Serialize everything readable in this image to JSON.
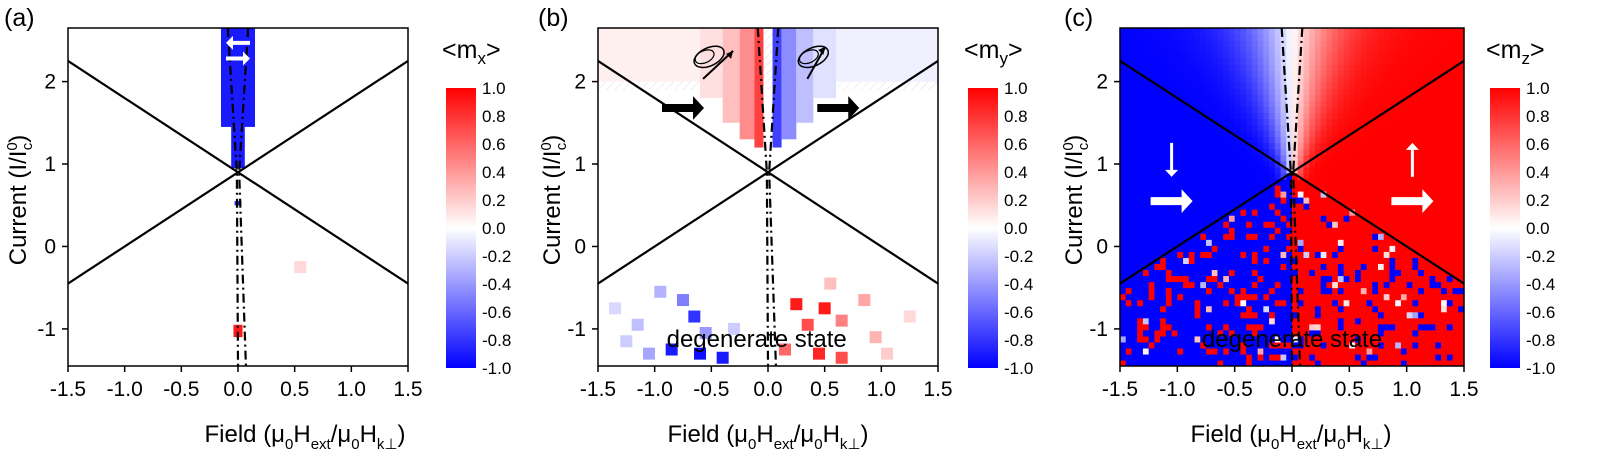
{
  "figure": {
    "description_visible": false
  },
  "colors": {
    "negative": "#0000ff",
    "zero": "#ffffff",
    "positive": "#ff0000"
  },
  "chart_data": [
    {
      "type": "heatmap",
      "panel_label": "(a)",
      "title": "",
      "xlabel": "Field (μ0Hext/μ0Hk⊥)",
      "xlabel_parts": {
        "main": "Field (μ",
        "s1": "0",
        "m2": "H",
        "s2": "ext",
        "m3": "/μ",
        "s3": "0",
        "m4": "H",
        "s4": "k⊥",
        "end": ")"
      },
      "ylabel": "Current (I/I0c)",
      "ylabel_parts": {
        "main": "Current (I/I",
        "sup": "0",
        "sub": "c",
        "end": ")"
      },
      "xlim": [
        -1.5,
        1.5
      ],
      "ylim": [
        -1.45,
        2.65
      ],
      "xticks": [
        "-1.5",
        "-1.0",
        "-0.5",
        "0.0",
        "0.5",
        "1.0",
        "1.5"
      ],
      "yticks": [
        "-1",
        "0",
        "1",
        "2"
      ],
      "colorbar": {
        "title_main": "<m",
        "title_sub": "x",
        "title_end": ">",
        "range": [
          -1.0,
          1.0
        ],
        "ticks": [
          "1.0",
          "0.8",
          "0.6",
          "0.4",
          "0.2",
          "0.0",
          "-0.2",
          "-0.4",
          "-0.6",
          "-0.8",
          "-1.0"
        ]
      },
      "lines_solid": [
        {
          "x": [
            -1.5,
            1.5
          ],
          "y": [
            -0.45,
            2.25
          ]
        },
        {
          "x": [
            -1.5,
            1.5
          ],
          "y": [
            2.25,
            -0.45
          ]
        }
      ],
      "lines_dashdot": [
        {
          "x": [
            -0.09,
            -0.01,
            0.0
          ],
          "y": [
            2.65,
            0.9,
            -1.45
          ]
        },
        {
          "x": [
            0.09,
            0.01,
            0.07
          ],
          "y": [
            2.65,
            0.9,
            -1.45
          ]
        }
      ],
      "regions": [
        {
          "x": [
            -0.15,
            0.15
          ],
          "y": [
            1.45,
            2.65
          ],
          "value": -0.9
        },
        {
          "x": [
            -0.06,
            0.06
          ],
          "y": [
            0.95,
            1.45
          ],
          "value": -0.9
        },
        {
          "x": [
            -0.03,
            0.03
          ],
          "y": [
            0.5,
            0.55
          ],
          "value": -0.9
        },
        {
          "x": [
            -0.04,
            0.04
          ],
          "y": [
            -1.1,
            -0.95
          ],
          "value": 0.9
        }
      ],
      "scatter_cells": [
        {
          "x": 0.55,
          "y": -0.25,
          "value": 0.15
        }
      ],
      "annotations": [
        {
          "kind": "arrow",
          "dir": "left",
          "x": 0.0,
          "y": 2.47,
          "style": "small"
        },
        {
          "kind": "arrow",
          "dir": "right",
          "x": 0.0,
          "y": 2.28,
          "style": "small"
        }
      ],
      "notes": []
    },
    {
      "type": "heatmap",
      "panel_label": "(b)",
      "title": "",
      "xlabel": "Field (μ0Hext/μ0Hk⊥)",
      "xlabel_parts": {
        "main": "Field (μ",
        "s1": "0",
        "m2": "H",
        "s2": "ext",
        "m3": "/μ",
        "s3": "0",
        "m4": "H",
        "s4": "k⊥",
        "end": ")"
      },
      "ylabel": "Current (I/I0c)",
      "ylabel_parts": {
        "main": "Current (I/I",
        "sup": "0",
        "sub": "c",
        "end": ")"
      },
      "xlim": [
        -1.5,
        1.5
      ],
      "ylim": [
        -1.45,
        2.65
      ],
      "xticks": [
        "-1.5",
        "-1.0",
        "-0.5",
        "0.0",
        "0.5",
        "1.0",
        "1.5"
      ],
      "yticks": [
        "-1",
        "0",
        "1",
        "2"
      ],
      "colorbar": {
        "title_main": "<m",
        "title_sub": "y",
        "title_end": ">",
        "range": [
          -1.0,
          1.0
        ],
        "ticks": [
          "1.0",
          "0.8",
          "0.6",
          "0.4",
          "0.2",
          "0.0",
          "-0.2",
          "-0.4",
          "-0.6",
          "-0.8",
          "-1.0"
        ]
      },
      "lines_solid": [
        {
          "x": [
            -1.5,
            1.5
          ],
          "y": [
            -0.45,
            2.25
          ]
        },
        {
          "x": [
            -1.5,
            1.5
          ],
          "y": [
            2.25,
            -0.45
          ]
        }
      ],
      "lines_dashdot": [
        {
          "x": [
            -0.09,
            -0.01,
            0.0
          ],
          "y": [
            2.65,
            0.9,
            -1.45
          ]
        },
        {
          "x": [
            0.09,
            0.01,
            0.07
          ],
          "y": [
            2.65,
            0.9,
            -1.45
          ]
        }
      ],
      "regions": [
        {
          "x": [
            -0.6,
            -0.4
          ],
          "y": [
            1.8,
            2.65
          ],
          "value": 0.12
        },
        {
          "x": [
            -0.4,
            -0.25
          ],
          "y": [
            1.5,
            2.65
          ],
          "value": 0.25
        },
        {
          "x": [
            -0.25,
            -0.12
          ],
          "y": [
            1.3,
            2.65
          ],
          "value": 0.45
        },
        {
          "x": [
            -0.12,
            -0.04
          ],
          "y": [
            1.2,
            2.65
          ],
          "value": 0.75
        },
        {
          "x": [
            0.04,
            0.12
          ],
          "y": [
            1.2,
            2.65
          ],
          "value": -0.75
        },
        {
          "x": [
            0.12,
            0.25
          ],
          "y": [
            1.3,
            2.65
          ],
          "value": -0.45
        },
        {
          "x": [
            0.25,
            0.4
          ],
          "y": [
            1.5,
            2.65
          ],
          "value": -0.25
        },
        {
          "x": [
            0.4,
            0.6
          ],
          "y": [
            1.8,
            2.65
          ],
          "value": -0.12
        },
        {
          "x": [
            -1.5,
            -0.6
          ],
          "y": [
            2.0,
            2.65
          ],
          "value": 0.06
        },
        {
          "x": [
            0.6,
            1.5
          ],
          "y": [
            2.0,
            2.65
          ],
          "value": -0.06
        }
      ],
      "scatter_cells": [
        {
          "x": -0.95,
          "y": -0.55,
          "value": -0.3
        },
        {
          "x": -0.75,
          "y": -0.65,
          "value": -0.5
        },
        {
          "x": -0.65,
          "y": -0.85,
          "value": -0.8
        },
        {
          "x": -0.55,
          "y": -1.05,
          "value": -0.4
        },
        {
          "x": -1.15,
          "y": -0.95,
          "value": -0.25
        },
        {
          "x": -1.35,
          "y": -0.75,
          "value": -0.15
        },
        {
          "x": -0.85,
          "y": -1.25,
          "value": -0.9
        },
        {
          "x": -0.6,
          "y": -1.3,
          "value": -0.95
        },
        {
          "x": -0.4,
          "y": -1.35,
          "value": -0.9
        },
        {
          "x": -1.05,
          "y": -1.3,
          "value": -0.35
        },
        {
          "x": -0.3,
          "y": -1.0,
          "value": -0.2
        },
        {
          "x": -1.25,
          "y": -1.15,
          "value": -0.2
        },
        {
          "x": 0.5,
          "y": -0.75,
          "value": 0.9
        },
        {
          "x": 0.35,
          "y": -0.95,
          "value": 0.7
        },
        {
          "x": 0.65,
          "y": -0.9,
          "value": 0.5
        },
        {
          "x": 0.85,
          "y": -0.65,
          "value": 0.35
        },
        {
          "x": 0.25,
          "y": -0.7,
          "value": 0.9
        },
        {
          "x": 0.95,
          "y": -1.1,
          "value": 0.3
        },
        {
          "x": 0.45,
          "y": -1.3,
          "value": 0.85
        },
        {
          "x": 0.65,
          "y": -1.35,
          "value": 0.7
        },
        {
          "x": 1.05,
          "y": -1.3,
          "value": 0.2
        },
        {
          "x": 0.15,
          "y": -1.25,
          "value": 0.6
        },
        {
          "x": 1.25,
          "y": -0.85,
          "value": 0.15
        },
        {
          "x": 0.55,
          "y": -0.45,
          "value": 0.25
        }
      ],
      "annotations": [
        {
          "kind": "arrow",
          "dir": "right",
          "x": -0.75,
          "y": 1.68,
          "style": "black"
        },
        {
          "kind": "arrow",
          "dir": "right",
          "x": 0.62,
          "y": 1.68,
          "style": "black"
        },
        {
          "kind": "precession",
          "x": -0.52,
          "y": 2.3,
          "tilt": "left"
        },
        {
          "kind": "precession",
          "x": 0.4,
          "y": 2.3,
          "tilt": "right"
        }
      ],
      "notes": [
        {
          "text": "degenerate state",
          "x": -0.1,
          "y": -1.22
        }
      ]
    },
    {
      "type": "heatmap",
      "panel_label": "(c)",
      "title": "",
      "xlabel": "Field (μ0Hext/μ0Hk⊥)",
      "xlabel_parts": {
        "main": "Field (μ",
        "s1": "0",
        "m2": "H",
        "s2": "ext",
        "m3": "/μ",
        "s3": "0",
        "m4": "H",
        "s4": "k⊥",
        "end": ")"
      },
      "ylabel": "Current (I/I0c)",
      "ylabel_parts": {
        "main": "Current (I/I",
        "sup": "0",
        "sub": "c",
        "end": ")"
      },
      "xlim": [
        -1.5,
        1.5
      ],
      "ylim": [
        -1.45,
        2.65
      ],
      "xticks": [
        "-1.5",
        "-1.0",
        "-0.5",
        "0.0",
        "0.5",
        "1.0",
        "1.5"
      ],
      "yticks": [
        "-1",
        "0",
        "1",
        "2"
      ],
      "colorbar": {
        "title_main": "<m",
        "title_sub": "z",
        "title_end": ">",
        "range": [
          -1.0,
          1.0
        ],
        "ticks": [
          "1.0",
          "0.8",
          "0.6",
          "0.4",
          "0.2",
          "0.0",
          "-0.2",
          "-0.4",
          "-0.6",
          "-0.8",
          "-1.0"
        ]
      },
      "lines_solid": [
        {
          "x": [
            -1.5,
            1.5
          ],
          "y": [
            -0.45,
            2.25
          ]
        },
        {
          "x": [
            -1.5,
            1.5
          ],
          "y": [
            2.25,
            -0.45
          ]
        }
      ],
      "lines_dashdot": [
        {
          "x": [
            -0.09,
            -0.01,
            0.0
          ],
          "y": [
            2.65,
            0.9,
            -1.45
          ]
        },
        {
          "x": [
            0.09,
            0.01,
            0.07
          ],
          "y": [
            2.65,
            0.9,
            -1.45
          ]
        }
      ],
      "regions": [],
      "scatter_cells": [],
      "annotations": [
        {
          "kind": "arrow",
          "dir": "down",
          "x": -1.05,
          "y": 1.05,
          "style": "white-thin"
        },
        {
          "kind": "arrow",
          "dir": "right",
          "x": -1.05,
          "y": 0.55,
          "style": "white"
        },
        {
          "kind": "arrow",
          "dir": "up",
          "x": 1.05,
          "y": 1.05,
          "style": "white-thin"
        },
        {
          "kind": "arrow",
          "dir": "right",
          "x": 1.05,
          "y": 0.55,
          "style": "white"
        }
      ],
      "notes": [
        {
          "text": "degenerate state",
          "x": 0.0,
          "y": -1.22
        }
      ],
      "field_map": "sign(x) above crossing lines, noisy below"
    }
  ]
}
